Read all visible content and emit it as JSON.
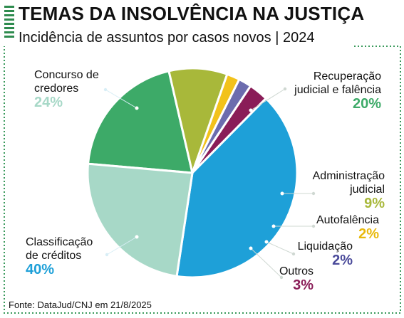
{
  "header": {
    "title": "TEMAS DA INSOLVÊNCIA NA JUSTIÇA",
    "subtitle": "Incidência de assuntos por casos novos | 2024"
  },
  "footer": {
    "source": "Fonte: DataJud/CNJ em 21/8/2025"
  },
  "colors": {
    "accent": "#2e8b4e",
    "frame": "#3a9a5c"
  },
  "chart_data": {
    "type": "pie",
    "title": "TEMAS DA INSOLVÊNCIA NA JUSTIÇA",
    "subtitle": "Incidência de assuntos por casos novos | 2024",
    "slices": [
      {
        "lines": [
          "Recuperação",
          "judicial e falência"
        ],
        "value_label": "20%",
        "value": 20,
        "color": "#3daa68",
        "label_color": "#3daa68"
      },
      {
        "lines": [
          "Administração",
          "judicial"
        ],
        "value_label": "9%",
        "value": 9,
        "color": "#a8b83a",
        "label_color": "#a8b83a"
      },
      {
        "lines": [
          "Autofalência"
        ],
        "value_label": "2%",
        "value": 2,
        "color": "#f2c21b",
        "label_color": "#e8b90c"
      },
      {
        "lines": [
          "Liquidação"
        ],
        "value_label": "2%",
        "value": 2,
        "color": "#6c6cae",
        "label_color": "#4a4a9a"
      },
      {
        "lines": [
          "Outros"
        ],
        "value_label": "3%",
        "value": 3,
        "color": "#8a1d58",
        "label_color": "#8a1d58"
      },
      {
        "lines": [
          "Classificação",
          "de créditos"
        ],
        "value_label": "40%",
        "value": 40,
        "color": "#1ea0d8",
        "label_color": "#1ea0d8"
      },
      {
        "lines": [
          "Concurso de",
          "credores"
        ],
        "value_label": "24%",
        "value": 24,
        "color": "#a7d8c7",
        "label_color": "#a7d8c7"
      }
    ]
  }
}
